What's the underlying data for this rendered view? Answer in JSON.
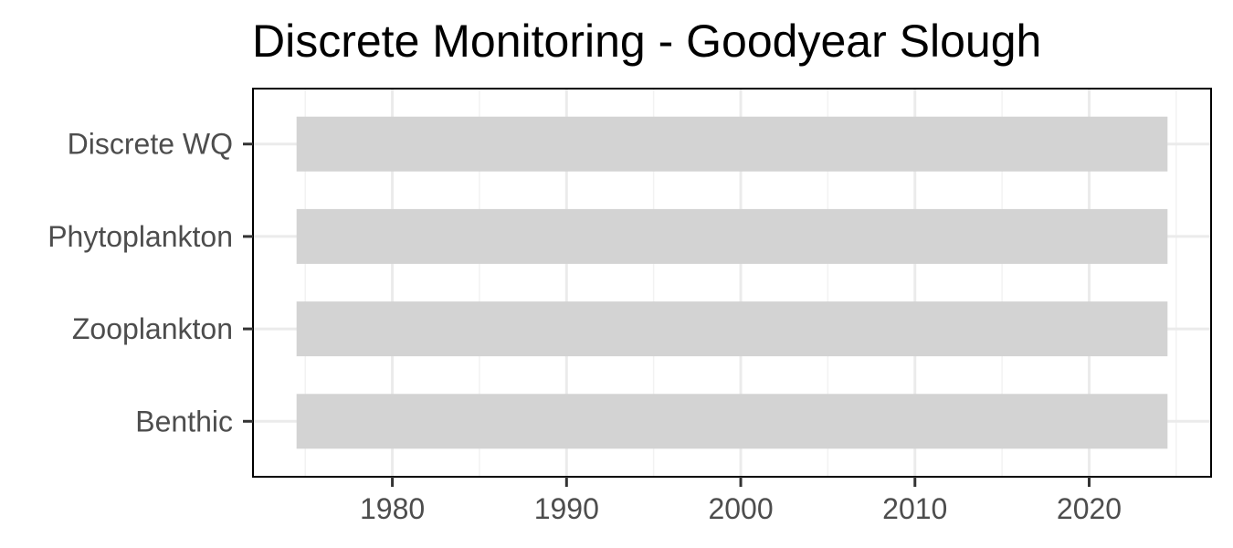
{
  "chart_data": {
    "type": "bar",
    "orientation": "horizontal-range",
    "title": "Discrete Monitoring - Goodyear Slough",
    "xlabel": "",
    "ylabel": "",
    "categories": [
      "Discrete WQ",
      "Phytoplankton",
      "Zooplankton",
      "Benthic"
    ],
    "ranges": [
      {
        "category": "Discrete WQ",
        "start": 1974.5,
        "end": 2024.5
      },
      {
        "category": "Phytoplankton",
        "start": 1974.5,
        "end": 2024.5
      },
      {
        "category": "Zooplankton",
        "start": 1974.5,
        "end": 2024.5
      },
      {
        "category": "Benthic",
        "start": 1974.5,
        "end": 2024.5
      }
    ],
    "xlim": [
      1972,
      2027
    ],
    "xticks": [
      1980,
      1990,
      2000,
      2010,
      2020
    ],
    "xtick_labels": [
      "1980",
      "1990",
      "2000",
      "2010",
      "2020"
    ],
    "grid": true,
    "legend": "none",
    "colors": {
      "bar": "#d3d3d3",
      "grid_major": "#ebebeb",
      "grid_minor": "#f2f2f2",
      "panel_border": "#000000",
      "tick_label": "#4d4d4d",
      "title": "#000000"
    }
  }
}
